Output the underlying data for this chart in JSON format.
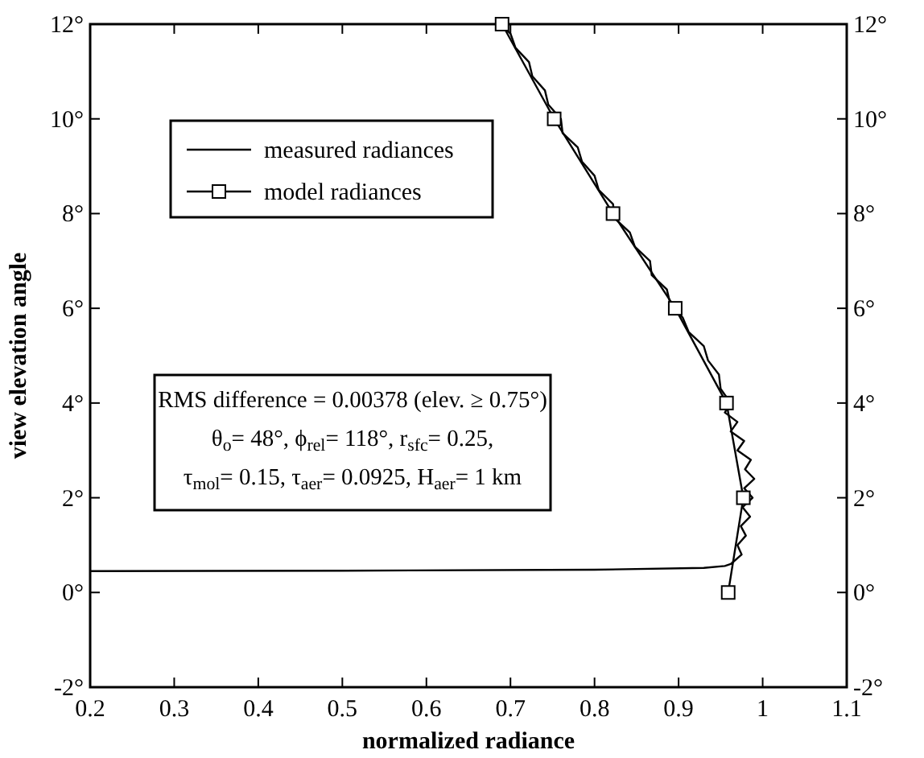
{
  "chart_data": {
    "type": "line",
    "xlabel": "normalized  radiance",
    "ylabel": "view elevation angle",
    "xlim": [
      0.2,
      1.1
    ],
    "xticks": [
      0.2,
      0.3,
      0.4,
      0.5,
      0.6,
      0.7,
      0.8,
      0.9,
      1,
      1.1
    ],
    "ylim": [
      -2,
      12
    ],
    "yticks": [
      {
        "value": -2,
        "label": "-2°"
      },
      {
        "value": 0,
        "label": "0°"
      },
      {
        "value": 2,
        "label": "2°"
      },
      {
        "value": 4,
        "label": "4°"
      },
      {
        "value": 6,
        "label": "6°"
      },
      {
        "value": 8,
        "label": "8°"
      },
      {
        "value": 10,
        "label": "10°"
      },
      {
        "value": 12,
        "label": "12°"
      }
    ],
    "y2lim": [
      -2,
      12
    ],
    "y2ticks": [
      {
        "value": -2,
        "label": "-2°"
      },
      {
        "value": 0,
        "label": "0°"
      },
      {
        "value": 2,
        "label": "2°"
      },
      {
        "value": 4,
        "label": "4°"
      },
      {
        "value": 6,
        "label": "6°"
      },
      {
        "value": 8,
        "label": "8°"
      },
      {
        "value": 10,
        "label": "10°"
      },
      {
        "value": 12,
        "label": "12°"
      }
    ],
    "legend": "top left",
    "grid": false,
    "series": [
      {
        "name": "measured radiances",
        "color": "#000000",
        "marker": "none",
        "x": [
          0.2,
          0.5,
          0.8,
          0.93,
          0.955,
          0.962,
          0.975,
          0.97,
          0.98,
          0.974,
          0.985,
          0.976,
          0.988,
          0.978,
          0.99,
          0.979,
          0.986,
          0.97,
          0.978,
          0.962,
          0.97,
          0.955,
          0.962,
          0.95,
          0.948,
          0.935,
          0.93,
          0.912,
          0.905,
          0.89,
          0.886,
          0.868,
          0.866,
          0.848,
          0.842,
          0.824,
          0.822,
          0.805,
          0.8,
          0.785,
          0.78,
          0.762,
          0.76,
          0.745,
          0.741,
          0.726,
          0.722,
          0.706,
          0.7,
          0.688
        ],
        "values": [
          0.45,
          0.46,
          0.48,
          0.52,
          0.56,
          0.6,
          0.8,
          1.0,
          1.2,
          1.4,
          1.6,
          1.8,
          2.0,
          2.2,
          2.4,
          2.6,
          2.8,
          3.0,
          3.2,
          3.4,
          3.6,
          3.8,
          4.0,
          4.3,
          4.6,
          4.9,
          5.2,
          5.5,
          5.8,
          6.1,
          6.4,
          6.7,
          7.0,
          7.3,
          7.6,
          7.9,
          8.2,
          8.5,
          8.8,
          9.1,
          9.4,
          9.7,
          10.0,
          10.3,
          10.6,
          10.9,
          11.2,
          11.5,
          11.8,
          12
        ]
      },
      {
        "name": "model radiances",
        "color": "#000000",
        "marker": "square",
        "x": [
          0.959,
          0.977,
          0.957,
          0.896,
          0.822,
          0.752,
          0.69
        ],
        "values": [
          0,
          2,
          4,
          6,
          8,
          10,
          12
        ]
      }
    ],
    "annotations": [
      "RMS difference = 0.00378 (elev. ≥ 0.75°)",
      "θ$_{o}$= 48°,  ϕ$_{rel}$= 118°,  r$_{sfc}$= 0.25,",
      "τ$_{mol}$= 0.15,  τ$_{aer}$= 0.0925,  H$_{aer}$= 1 km"
    ]
  }
}
